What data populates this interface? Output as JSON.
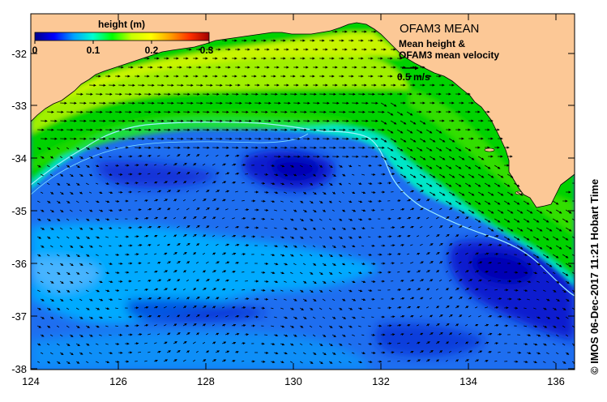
{
  "title": "OFAM3 MEAN",
  "subtitle_line1": "Mean height &",
  "subtitle_line2": "OFAM3 mean velocity",
  "scale_arrow_label": "0.5 m/s",
  "colorbar": {
    "label": "height (m)",
    "ticks": [
      "0",
      "0.1",
      "0.2",
      "0.3"
    ],
    "colors": [
      "#00008b",
      "#0000ff",
      "#00a0ff",
      "#00ffd0",
      "#00ff00",
      "#c8ff00",
      "#ffff00",
      "#ffa000",
      "#ff3000",
      "#a00000"
    ]
  },
  "axes": {
    "x_ticks": [
      "124",
      "126",
      "128",
      "130",
      "132",
      "134",
      "136"
    ],
    "y_ticks": [
      "-32",
      "-33",
      "-34",
      "-35",
      "-36",
      "-37",
      "-38"
    ]
  },
  "copyright": "© IMOS 06-Dec-2017 11:21 Hobart Time",
  "colors": {
    "land": "#fcc896",
    "deep_blue": "#0000c8",
    "mid_blue": "#1e6ef0",
    "light_blue": "#00aaff",
    "cyan": "#00e6e6",
    "green": "#00d200",
    "lime": "#a0f000",
    "yellow": "#dcf500"
  }
}
